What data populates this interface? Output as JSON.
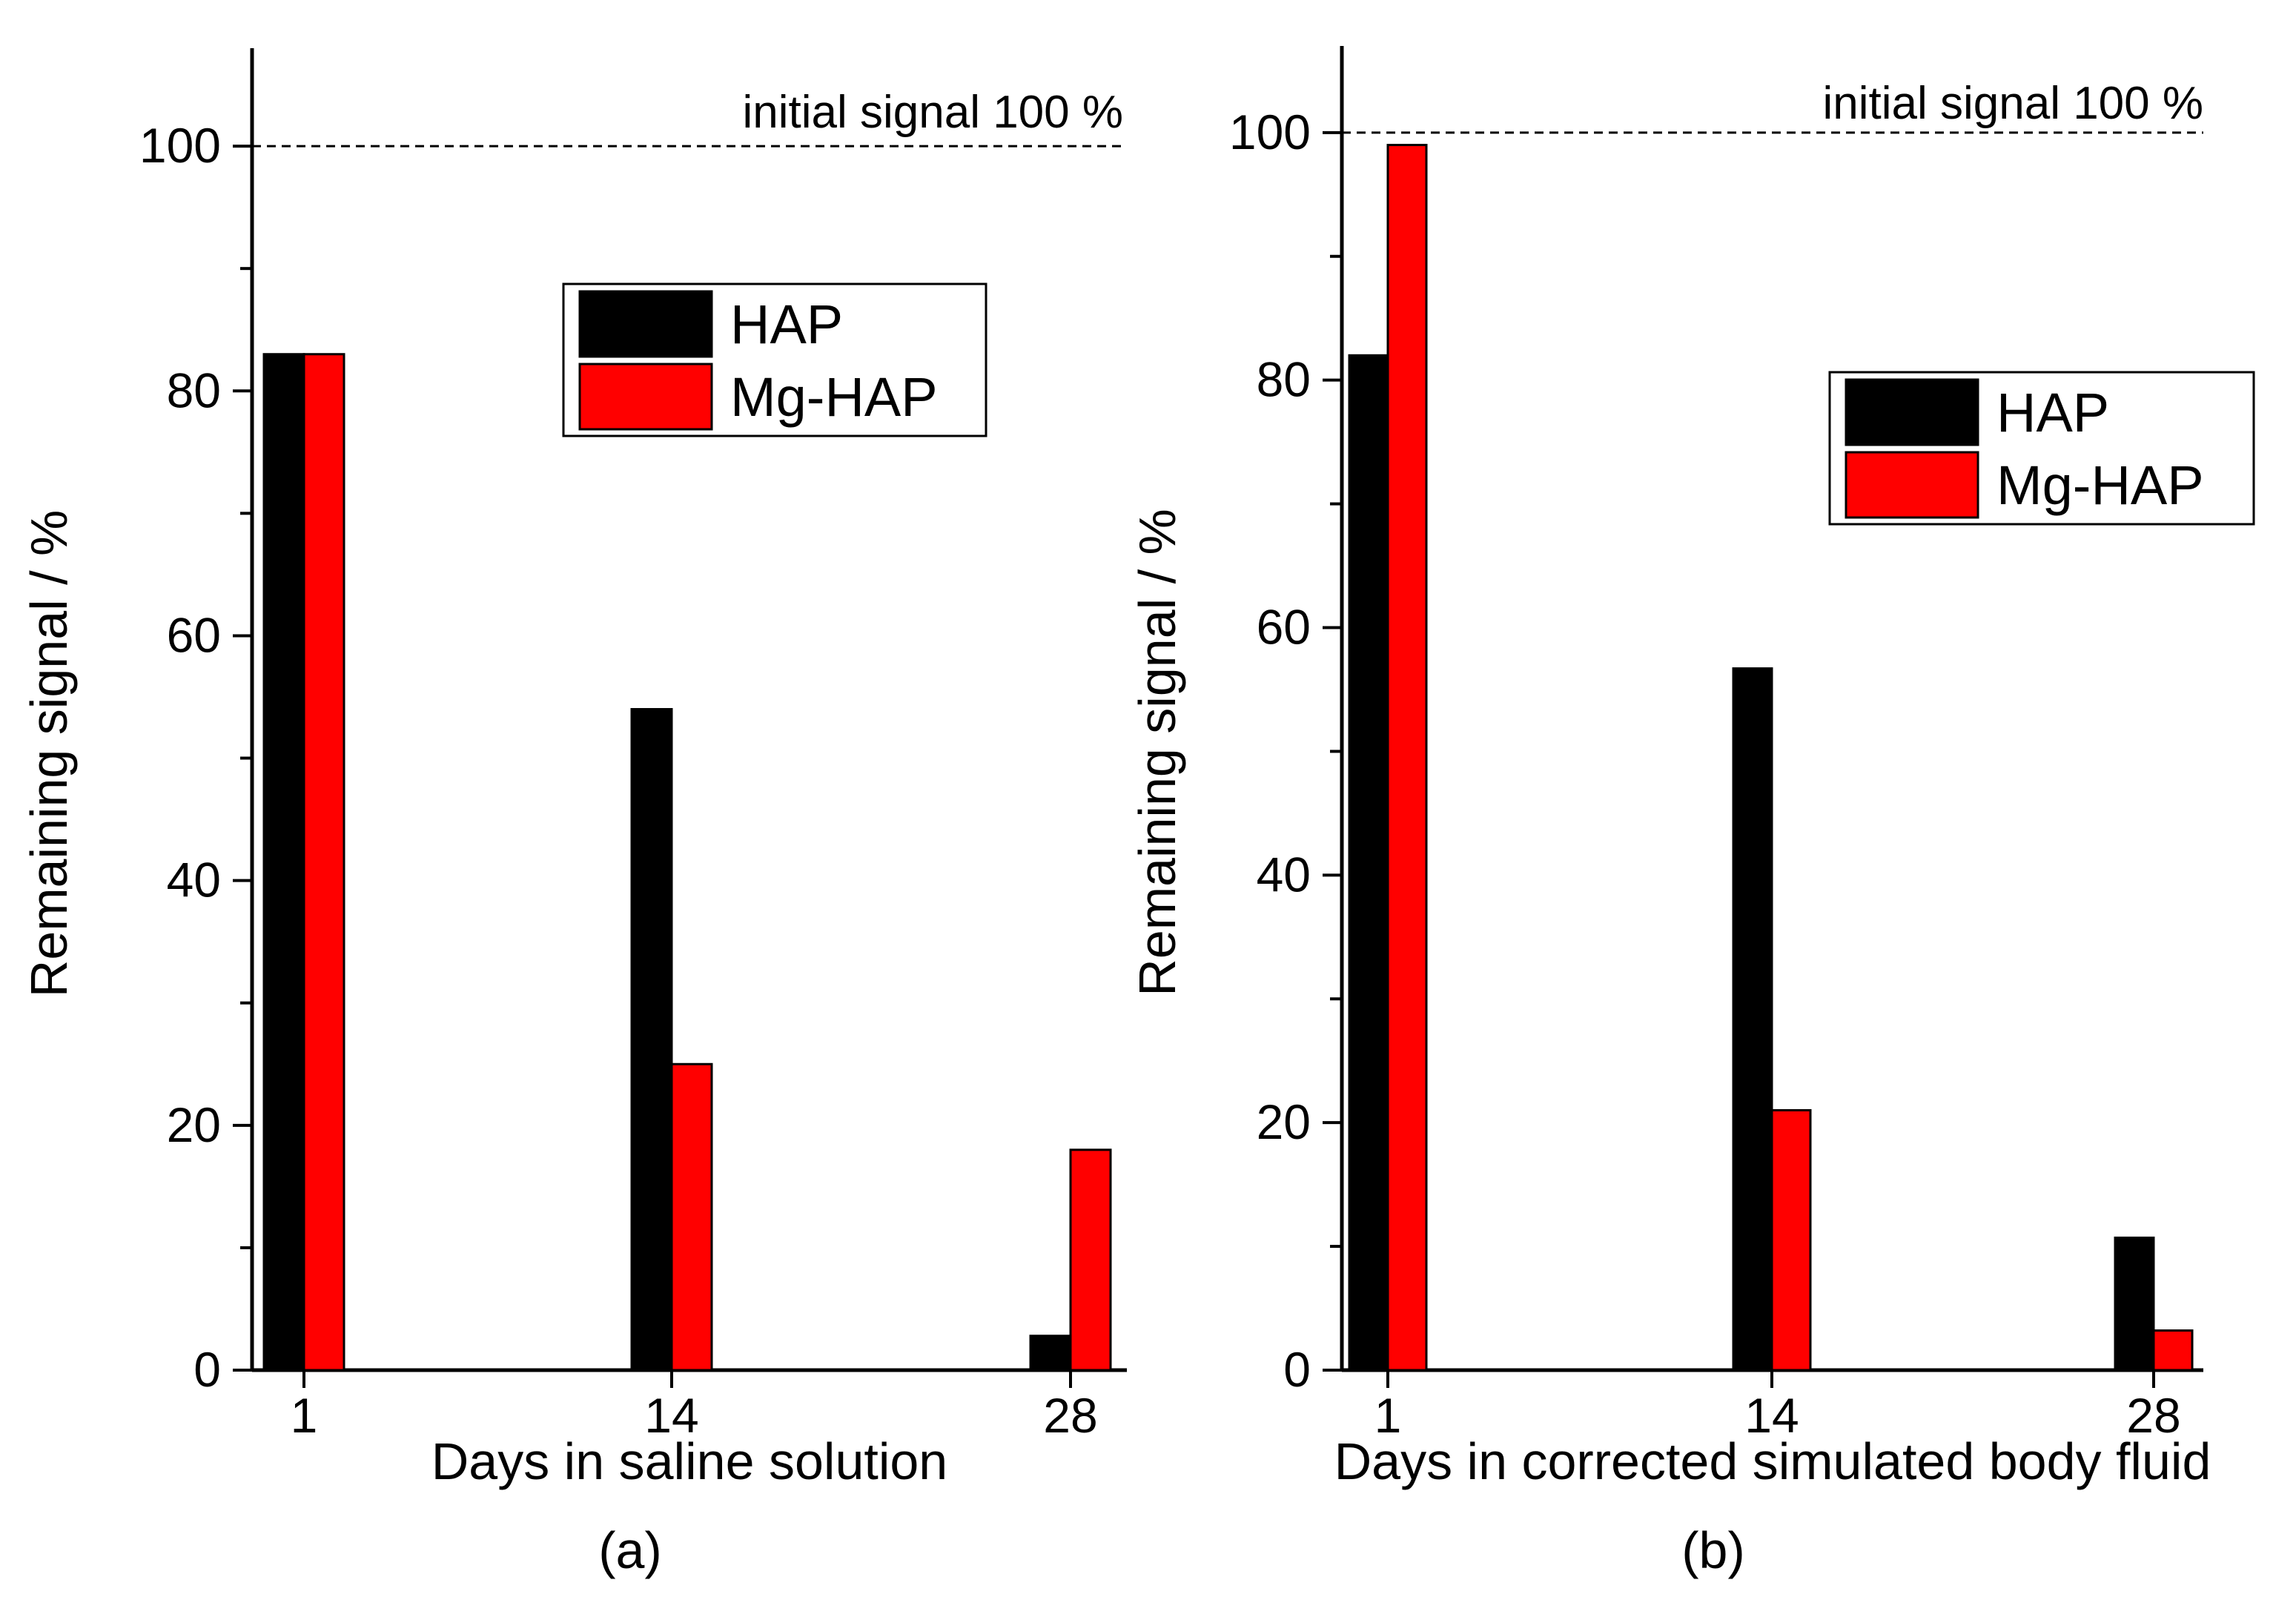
{
  "chart_data": [
    {
      "type": "bar",
      "panel_label": "(a)",
      "xlabel": "Days in saline solution",
      "ylabel": "Remaining signal / %",
      "categories": [
        "1",
        "14",
        "28"
      ],
      "ylim": [
        0,
        108
      ],
      "yticks": [
        "0",
        "20",
        "40",
        "60",
        "80",
        "100"
      ],
      "reference_line": {
        "value": 100,
        "label": "initial signal 100 %"
      },
      "legend_position": "upper-right",
      "series": [
        {
          "name": "HAP",
          "color": "#000000",
          "values": [
            83,
            54,
            2.8
          ]
        },
        {
          "name": "Mg-HAP",
          "color": "#ff0000",
          "values": [
            83,
            25,
            18
          ]
        }
      ]
    },
    {
      "type": "bar",
      "panel_label": "(b)",
      "xlabel": "Days in corrected simulated body fluid",
      "ylabel": "Remaining signal / %",
      "categories": [
        "1",
        "14",
        "28"
      ],
      "ylim": [
        0,
        107
      ],
      "yticks": [
        "0",
        "20",
        "40",
        "60",
        "80",
        "100"
      ],
      "reference_line": {
        "value": 100,
        "label": "initial signal 100 %"
      },
      "legend_position": "right",
      "series": [
        {
          "name": "HAP",
          "color": "#000000",
          "values": [
            82,
            56.7,
            10.7
          ]
        },
        {
          "name": "Mg-HAP",
          "color": "#ff0000",
          "values": [
            99,
            21,
            3.2
          ]
        }
      ]
    }
  ]
}
